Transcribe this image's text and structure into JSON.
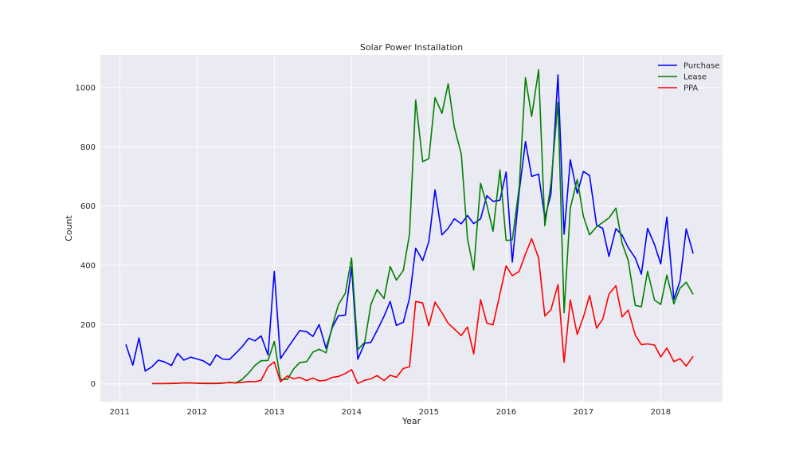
{
  "chart_data": {
    "type": "line",
    "title": "Solar Power Installation",
    "xlabel": "Year",
    "ylabel": "Count",
    "xlim": [
      2010.75,
      2018.8
    ],
    "ylim": [
      -60,
      1110
    ],
    "xticks": [
      2011,
      2012,
      2013,
      2014,
      2015,
      2016,
      2017,
      2018
    ],
    "yticks": [
      0,
      200,
      400,
      600,
      800,
      1000
    ],
    "grid": true,
    "legend_position": "top-right",
    "series": [
      {
        "name": "Purchase",
        "color": "#0000ff",
        "x": [
          2011.08,
          2011.17,
          2011.25,
          2011.33,
          2011.42,
          2011.5,
          2011.58,
          2011.67,
          2011.75,
          2011.83,
          2011.92,
          2012.0,
          2012.08,
          2012.17,
          2012.25,
          2012.33,
          2012.42,
          2012.5,
          2012.58,
          2012.67,
          2012.75,
          2012.83,
          2012.92,
          2013.0,
          2013.08,
          2013.17,
          2013.25,
          2013.33,
          2013.42,
          2013.5,
          2013.58,
          2013.67,
          2013.75,
          2013.83,
          2013.92,
          2014.0,
          2014.08,
          2014.17,
          2014.25,
          2014.33,
          2014.42,
          2014.5,
          2014.58,
          2014.67,
          2014.75,
          2014.83,
          2014.92,
          2015.0,
          2015.08,
          2015.17,
          2015.25,
          2015.33,
          2015.42,
          2015.5,
          2015.58,
          2015.67,
          2015.75,
          2015.83,
          2015.92,
          2016.0,
          2016.08,
          2016.17,
          2016.25,
          2016.33,
          2016.42,
          2016.5,
          2016.58,
          2016.67,
          2016.75,
          2016.83,
          2016.92,
          2017.0,
          2017.08,
          2017.17,
          2017.25,
          2017.33,
          2017.42,
          2017.5,
          2017.58,
          2017.67,
          2017.75,
          2017.83,
          2017.92,
          2018.0,
          2018.08,
          2018.17,
          2018.25,
          2018.33,
          2018.42
        ],
        "values": [
          133,
          63,
          155,
          43,
          58,
          80,
          74,
          62,
          103,
          80,
          90,
          84,
          78,
          63,
          98,
          84,
          82,
          103,
          124,
          154,
          145,
          162,
          97,
          380,
          85,
          120,
          150,
          180,
          176,
          160,
          200,
          120,
          190,
          230,
          232,
          395,
          83,
          137,
          140,
          180,
          228,
          278,
          197,
          208,
          290,
          458,
          416,
          480,
          655,
          503,
          525,
          557,
          540,
          568,
          541,
          557,
          635,
          616,
          620,
          715,
          411,
          650,
          818,
          700,
          708,
          560,
          640,
          1043,
          505,
          756,
          643,
          717,
          703,
          535,
          525,
          430,
          524,
          502,
          460,
          425,
          370,
          525,
          470,
          405,
          563,
          285,
          347,
          523,
          440
        ]
      },
      {
        "name": "Lease",
        "color": "#008000",
        "x": [
          2011.42,
          2011.5,
          2011.58,
          2011.67,
          2011.75,
          2011.83,
          2011.92,
          2012.0,
          2012.08,
          2012.17,
          2012.25,
          2012.33,
          2012.42,
          2012.5,
          2012.58,
          2012.67,
          2012.75,
          2012.83,
          2012.92,
          2013.0,
          2013.08,
          2013.17,
          2013.25,
          2013.33,
          2013.42,
          2013.5,
          2013.58,
          2013.67,
          2013.75,
          2013.83,
          2013.92,
          2014.0,
          2014.08,
          2014.17,
          2014.25,
          2014.33,
          2014.42,
          2014.5,
          2014.58,
          2014.67,
          2014.75,
          2014.83,
          2014.92,
          2015.0,
          2015.08,
          2015.17,
          2015.25,
          2015.33,
          2015.42,
          2015.5,
          2015.58,
          2015.67,
          2015.75,
          2015.83,
          2015.92,
          2016.0,
          2016.08,
          2016.17,
          2016.25,
          2016.33,
          2016.42,
          2016.5,
          2016.58,
          2016.67,
          2016.75,
          2016.83,
          2016.92,
          2017.0,
          2017.08,
          2017.17,
          2017.25,
          2017.33,
          2017.42,
          2017.5,
          2017.58,
          2017.67,
          2017.75,
          2017.83,
          2017.92,
          2018.0,
          2018.08,
          2018.17,
          2018.25,
          2018.33,
          2018.42
        ],
        "values": [
          1,
          1,
          1,
          2,
          2,
          3,
          3,
          2,
          2,
          2,
          2,
          3,
          4,
          3,
          14,
          37,
          62,
          78,
          79,
          143,
          15,
          15,
          50,
          72,
          75,
          107,
          117,
          105,
          195,
          267,
          306,
          425,
          115,
          140,
          268,
          318,
          288,
          396,
          350,
          383,
          506,
          958,
          750,
          760,
          966,
          913,
          1013,
          866,
          775,
          491,
          384,
          677,
          605,
          515,
          722,
          484,
          486,
          665,
          1033,
          903,
          1060,
          534,
          676,
          950,
          240,
          593,
          690,
          565,
          503,
          530,
          545,
          560,
          593,
          475,
          417,
          265,
          260,
          380,
          283,
          268,
          367,
          270,
          323,
          343,
          302
        ]
      },
      {
        "name": "PPA",
        "color": "#ff0000",
        "x": [
          2011.42,
          2011.5,
          2011.58,
          2011.67,
          2011.75,
          2011.83,
          2011.92,
          2012.0,
          2012.08,
          2012.17,
          2012.25,
          2012.33,
          2012.42,
          2012.5,
          2012.58,
          2012.67,
          2012.75,
          2012.83,
          2012.92,
          2013.0,
          2013.08,
          2013.17,
          2013.25,
          2013.33,
          2013.42,
          2013.5,
          2013.58,
          2013.67,
          2013.75,
          2013.83,
          2013.92,
          2014.0,
          2014.08,
          2014.17,
          2014.25,
          2014.33,
          2014.42,
          2014.5,
          2014.58,
          2014.67,
          2014.75,
          2014.83,
          2014.92,
          2015.0,
          2015.08,
          2015.17,
          2015.25,
          2015.33,
          2015.42,
          2015.5,
          2015.58,
          2015.67,
          2015.75,
          2015.83,
          2015.92,
          2016.0,
          2016.08,
          2016.17,
          2016.25,
          2016.33,
          2016.42,
          2016.5,
          2016.58,
          2016.67,
          2016.75,
          2016.83,
          2016.92,
          2017.0,
          2017.08,
          2017.17,
          2017.25,
          2017.33,
          2017.42,
          2017.5,
          2017.58,
          2017.67,
          2017.75,
          2017.83,
          2017.92,
          2018.0,
          2018.08,
          2018.17,
          2018.25,
          2018.33,
          2018.42
        ],
        "values": [
          1,
          1,
          1,
          1,
          2,
          3,
          3,
          2,
          1,
          1,
          1,
          2,
          5,
          3,
          5,
          8,
          7,
          12,
          58,
          74,
          7,
          27,
          17,
          22,
          11,
          20,
          10,
          12,
          22,
          25,
          35,
          48,
          1,
          12,
          17,
          28,
          11,
          29,
          22,
          52,
          58,
          278,
          273,
          196,
          276,
          240,
          204,
          185,
          163,
          192,
          101,
          284,
          205,
          199,
          304,
          398,
          365,
          380,
          438,
          490,
          425,
          229,
          250,
          335,
          73,
          283,
          167,
          226,
          298,
          188,
          218,
          303,
          331,
          226,
          249,
          165,
          132,
          135,
          131,
          91,
          121,
          75,
          85,
          60,
          93
        ]
      }
    ]
  }
}
